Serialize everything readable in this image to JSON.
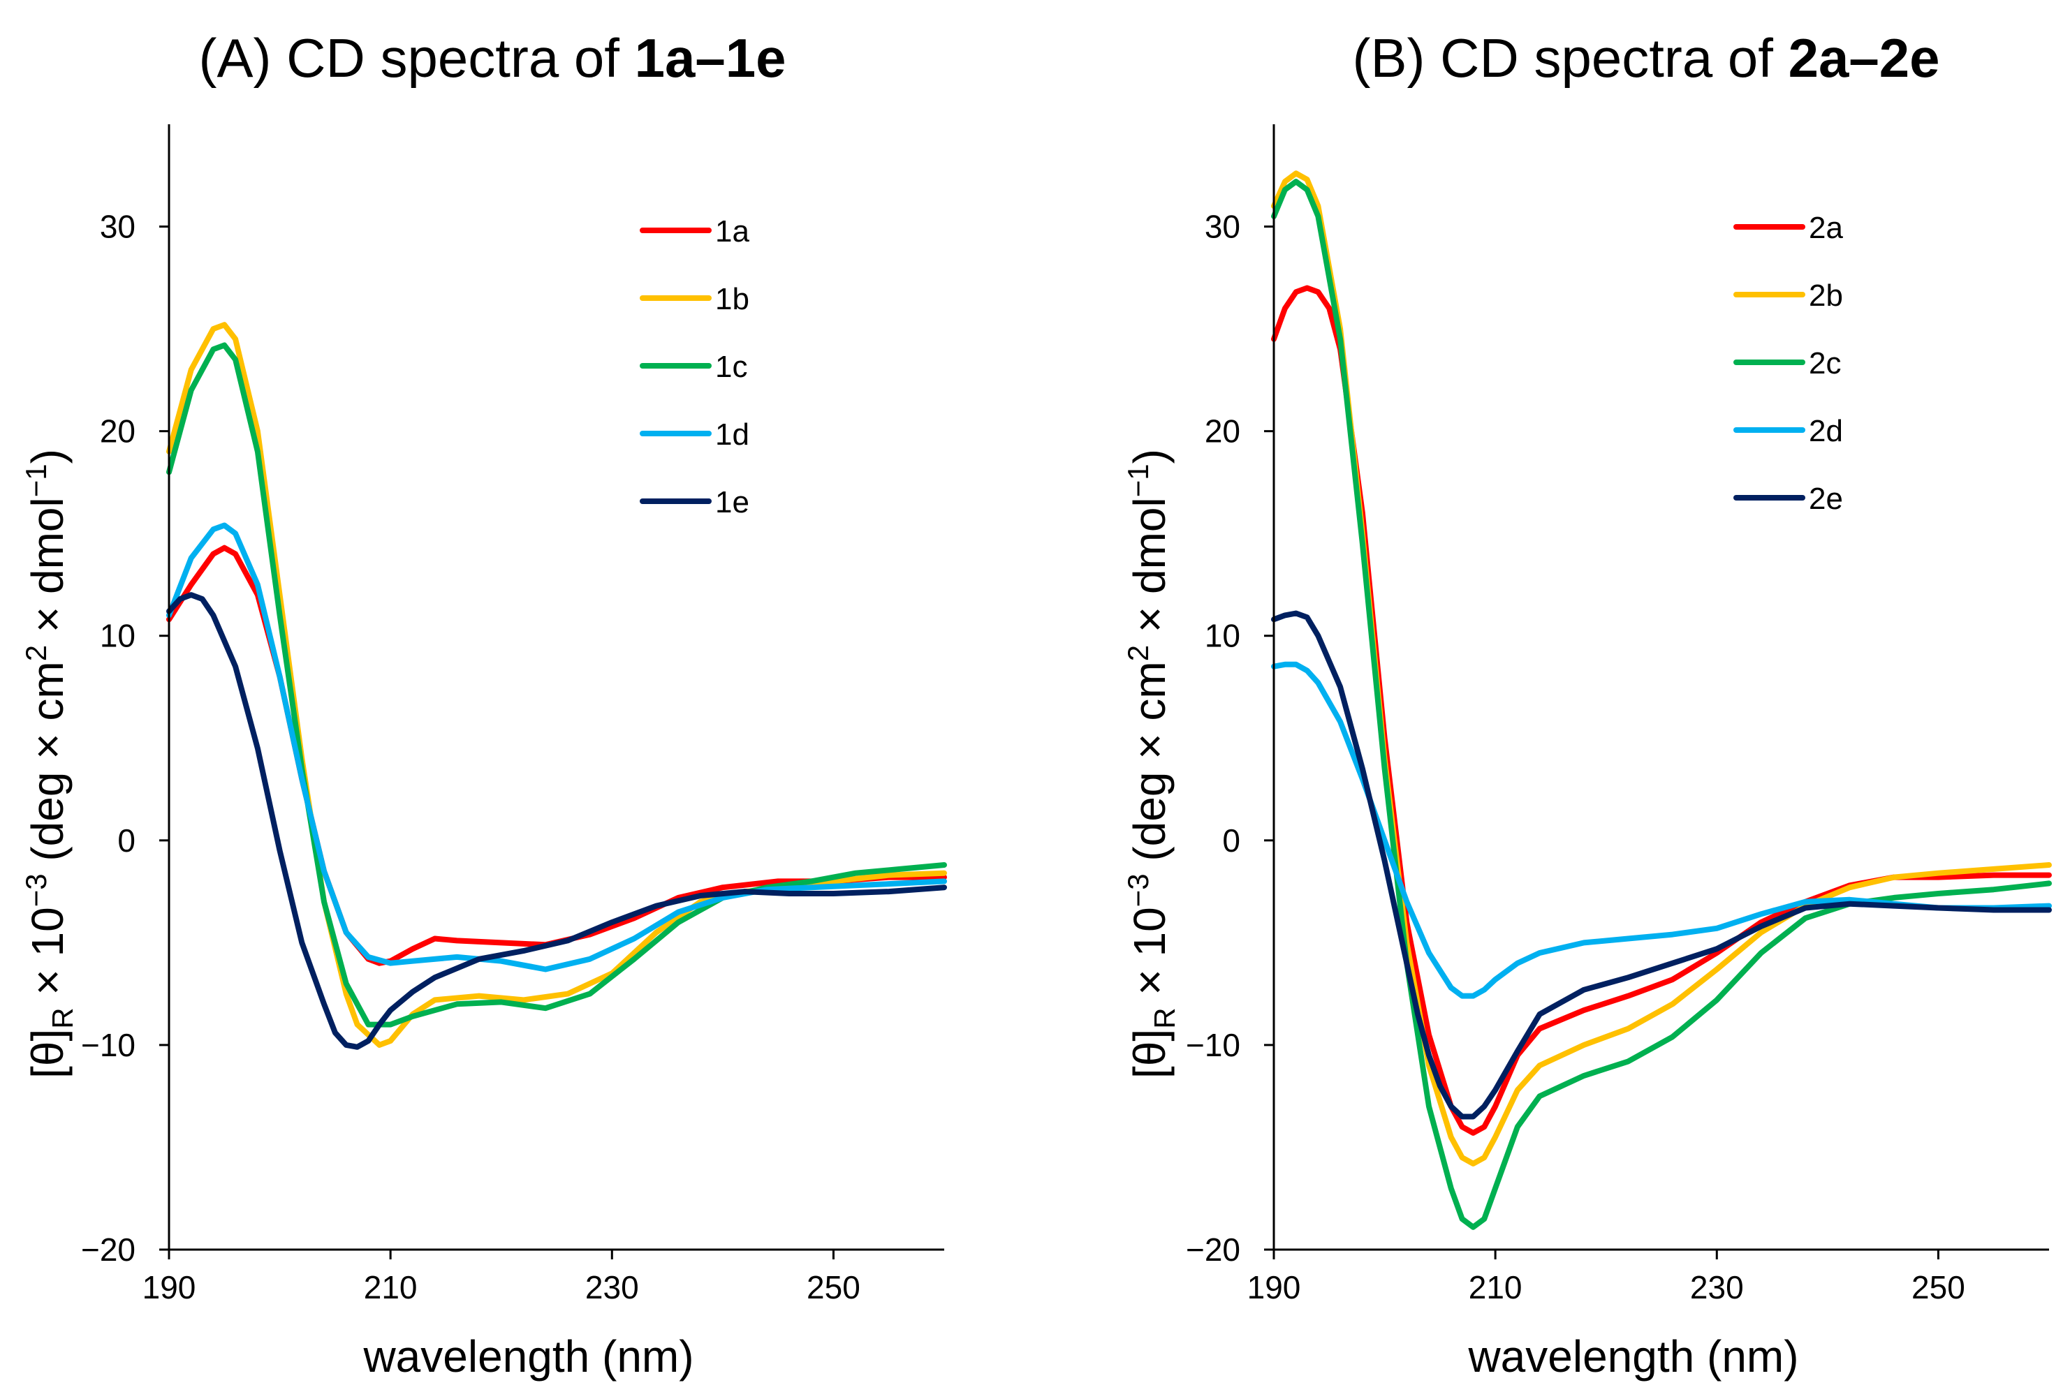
{
  "chart_data": [
    {
      "type": "line",
      "title_prefix": "(A) CD spectra of ",
      "title_bold": "1a–1e",
      "xlabel": "wavelength (nm)",
      "ylabel": "[θ]R × 10−3 (deg × cm2 × dmol−1)",
      "ylabel_parts": {
        "pre": "[θ]",
        "sub": "R",
        "mid": " × 10",
        "sup1": "−3",
        "mid2": " (deg × cm",
        "sup2": "2",
        "mid3": " × dmol",
        "sup3": "−1",
        "post": ")"
      },
      "xlim": [
        190,
        260
      ],
      "ylim": [
        -20,
        35
      ],
      "xticks": [
        190,
        210,
        230,
        250
      ],
      "yticks": [
        -20,
        -10,
        0,
        10,
        20,
        30
      ],
      "ytick_labels": [
        "−20",
        "−10",
        "0",
        "10",
        "20",
        "30"
      ],
      "xtick_labels": [
        "190",
        "210",
        "230",
        "250"
      ],
      "legend_position": "top-right",
      "series": [
        {
          "name": "1a",
          "color": "#ff0000",
          "x": [
            190,
            192,
            194,
            195,
            196,
            198,
            200,
            202,
            204,
            206,
            208,
            209,
            210,
            212,
            214,
            216,
            220,
            224,
            228,
            232,
            236,
            240,
            245,
            250,
            255,
            260
          ],
          "y": [
            10.8,
            12.5,
            14.0,
            14.3,
            14.0,
            12.0,
            8.0,
            3.0,
            -1.5,
            -4.5,
            -5.8,
            -6.0,
            -5.9,
            -5.3,
            -4.8,
            -4.9,
            -5.0,
            -5.1,
            -4.6,
            -3.8,
            -2.8,
            -2.3,
            -2.0,
            -2.0,
            -1.8,
            -1.8
          ]
        },
        {
          "name": "1b",
          "color": "#ffc000",
          "x": [
            190,
            192,
            194,
            195,
            196,
            198,
            200,
            202,
            204,
            206,
            207,
            209,
            210,
            212,
            214,
            218,
            222,
            226,
            230,
            234,
            238,
            242,
            246,
            250,
            255,
            260
          ],
          "y": [
            19.0,
            23.0,
            25.0,
            25.2,
            24.5,
            20.0,
            12.0,
            4.0,
            -3.0,
            -7.5,
            -9.0,
            -10.0,
            -9.8,
            -8.5,
            -7.8,
            -7.6,
            -7.8,
            -7.5,
            -6.5,
            -4.5,
            -3.0,
            -2.5,
            -2.3,
            -2.0,
            -1.7,
            -1.6
          ]
        },
        {
          "name": "1c",
          "color": "#00b050",
          "x": [
            190,
            192,
            194,
            195,
            196,
            198,
            200,
            202,
            204,
            206,
            208,
            210,
            212,
            216,
            220,
            224,
            228,
            232,
            236,
            240,
            244,
            248,
            252,
            256,
            260
          ],
          "y": [
            18.0,
            22.0,
            24.0,
            24.2,
            23.5,
            19.0,
            11.0,
            3.5,
            -3.0,
            -7.0,
            -9.0,
            -9.0,
            -8.6,
            -8.0,
            -7.9,
            -8.2,
            -7.5,
            -5.8,
            -4.0,
            -2.8,
            -2.3,
            -2.0,
            -1.6,
            -1.4,
            -1.2
          ]
        },
        {
          "name": "1d",
          "color": "#00b0f0",
          "x": [
            190,
            192,
            194,
            195,
            196,
            198,
            200,
            202,
            204,
            206,
            208,
            210,
            212,
            216,
            220,
            224,
            228,
            232,
            236,
            240,
            244,
            248,
            252,
            256,
            260
          ],
          "y": [
            11.0,
            13.8,
            15.2,
            15.4,
            15.0,
            12.5,
            8.0,
            3.0,
            -1.5,
            -4.5,
            -5.7,
            -6.0,
            -5.9,
            -5.7,
            -5.9,
            -6.3,
            -5.8,
            -4.8,
            -3.5,
            -2.8,
            -2.4,
            -2.3,
            -2.2,
            -2.1,
            -2.0
          ]
        },
        {
          "name": "1e",
          "color": "#002060",
          "x": [
            190,
            191,
            192,
            193,
            194,
            196,
            198,
            200,
            202,
            204,
            205,
            206,
            207,
            208,
            209,
            210,
            212,
            214,
            218,
            222,
            226,
            230,
            234,
            238,
            242,
            246,
            250,
            255,
            260
          ],
          "y": [
            11.2,
            11.8,
            12.0,
            11.8,
            11.0,
            8.5,
            4.5,
            -0.5,
            -5.0,
            -8.0,
            -9.4,
            -10.0,
            -10.1,
            -9.8,
            -9.0,
            -8.3,
            -7.4,
            -6.7,
            -5.8,
            -5.4,
            -4.9,
            -4.0,
            -3.2,
            -2.7,
            -2.5,
            -2.6,
            -2.6,
            -2.5,
            -2.3
          ]
        }
      ]
    },
    {
      "type": "line",
      "title_prefix": "(B) CD spectra of ",
      "title_bold": "2a–2e",
      "xlabel": "wavelength (nm)",
      "ylabel": "[θ]R × 10−3 (deg × cm2 × dmol−1)",
      "ylabel_parts": {
        "pre": "[θ]",
        "sub": "R",
        "mid": " × 10",
        "sup1": "−3",
        "mid2": " (deg × cm",
        "sup2": "2",
        "mid3": " × dmol",
        "sup3": "−1",
        "post": ")"
      },
      "xlim": [
        190,
        260
      ],
      "ylim": [
        -20,
        35
      ],
      "xticks": [
        190,
        210,
        230,
        250
      ],
      "yticks": [
        -20,
        -10,
        0,
        10,
        20,
        30
      ],
      "ytick_labels": [
        "−20",
        "−10",
        "0",
        "10",
        "20",
        "30"
      ],
      "xtick_labels": [
        "190",
        "210",
        "230",
        "250"
      ],
      "legend_position": "top-right",
      "series": [
        {
          "name": "2a",
          "color": "#ff0000",
          "x": [
            190,
            191,
            192,
            193,
            194,
            195,
            196,
            198,
            200,
            202,
            204,
            206,
            207,
            208,
            209,
            210,
            212,
            214,
            218,
            222,
            226,
            230,
            234,
            238,
            242,
            246,
            250,
            255,
            260
          ],
          "y": [
            24.5,
            26.0,
            26.8,
            27.0,
            26.8,
            26.0,
            24.0,
            16.0,
            5.0,
            -4.0,
            -9.5,
            -13.0,
            -14.0,
            -14.3,
            -14.0,
            -13.0,
            -10.5,
            -9.2,
            -8.3,
            -7.6,
            -6.8,
            -5.5,
            -4.0,
            -3.0,
            -2.2,
            -1.8,
            -1.8,
            -1.7,
            -1.7
          ]
        },
        {
          "name": "2b",
          "color": "#ffc000",
          "x": [
            190,
            191,
            192,
            193,
            194,
            196,
            198,
            200,
            202,
            204,
            206,
            207,
            208,
            209,
            210,
            212,
            214,
            218,
            222,
            226,
            230,
            234,
            238,
            242,
            246,
            250,
            255,
            260
          ],
          "y": [
            31.0,
            32.2,
            32.6,
            32.3,
            31.0,
            25.0,
            15.0,
            4.0,
            -5.0,
            -11.0,
            -14.5,
            -15.5,
            -15.8,
            -15.5,
            -14.5,
            -12.2,
            -11.0,
            -10.0,
            -9.2,
            -8.0,
            -6.3,
            -4.5,
            -3.2,
            -2.3,
            -1.8,
            -1.6,
            -1.4,
            -1.2
          ]
        },
        {
          "name": "2c",
          "color": "#00b050",
          "x": [
            190,
            191,
            192,
            193,
            194,
            196,
            198,
            200,
            202,
            204,
            206,
            207,
            208,
            209,
            210,
            212,
            214,
            218,
            222,
            226,
            230,
            234,
            238,
            242,
            246,
            250,
            255,
            260
          ],
          "y": [
            30.5,
            31.8,
            32.2,
            31.8,
            30.5,
            24.5,
            14.5,
            3.5,
            -6.0,
            -13.0,
            -17.0,
            -18.5,
            -18.9,
            -18.5,
            -17.0,
            -14.0,
            -12.5,
            -11.5,
            -10.8,
            -9.6,
            -7.8,
            -5.5,
            -3.8,
            -3.1,
            -2.8,
            -2.6,
            -2.4,
            -2.1
          ]
        },
        {
          "name": "2d",
          "color": "#00b0f0",
          "x": [
            190,
            191,
            192,
            193,
            194,
            196,
            198,
            200,
            202,
            204,
            206,
            207,
            208,
            209,
            210,
            212,
            214,
            218,
            222,
            226,
            230,
            234,
            238,
            242,
            246,
            250,
            255,
            260
          ],
          "y": [
            8.5,
            8.6,
            8.6,
            8.3,
            7.7,
            5.8,
            3.0,
            0.0,
            -3.0,
            -5.5,
            -7.2,
            -7.6,
            -7.6,
            -7.3,
            -6.8,
            -6.0,
            -5.5,
            -5.0,
            -4.8,
            -4.6,
            -4.3,
            -3.6,
            -3.0,
            -2.9,
            -3.1,
            -3.3,
            -3.3,
            -3.2
          ]
        },
        {
          "name": "2e",
          "color": "#002060",
          "x": [
            190,
            191,
            192,
            193,
            194,
            196,
            198,
            200,
            202,
            203,
            204,
            205,
            206,
            207,
            208,
            209,
            210,
            212,
            214,
            218,
            222,
            226,
            230,
            234,
            238,
            242,
            246,
            250,
            255,
            260
          ],
          "y": [
            10.8,
            11.0,
            11.1,
            10.9,
            10.0,
            7.5,
            3.5,
            -1.0,
            -6.0,
            -8.5,
            -10.5,
            -12.0,
            -13.0,
            -13.5,
            -13.5,
            -13.0,
            -12.2,
            -10.3,
            -8.5,
            -7.3,
            -6.7,
            -6.0,
            -5.3,
            -4.2,
            -3.3,
            -3.1,
            -3.2,
            -3.3,
            -3.4,
            -3.4
          ]
        }
      ]
    }
  ]
}
